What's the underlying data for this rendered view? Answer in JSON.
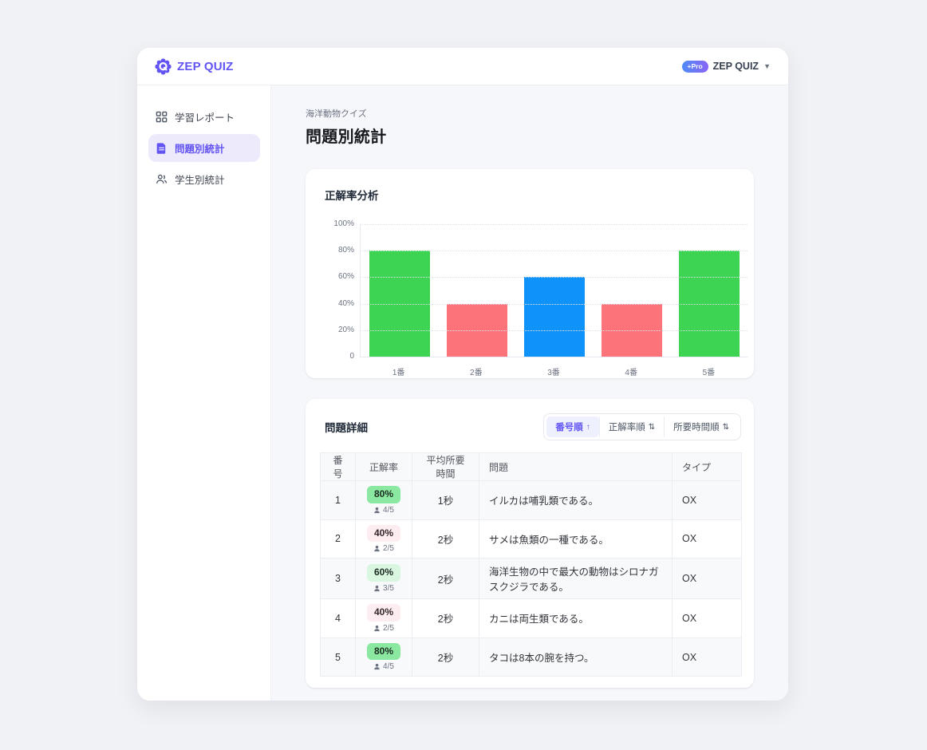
{
  "brand": {
    "logo_text": "ZEP QUIZ",
    "pro_badge": "+Pro",
    "account_name": "ZEP QUIZ"
  },
  "colors": {
    "accent_purple": "#6253f5",
    "bar_green": "#3dd353",
    "bar_red": "#fd737a",
    "bar_blue": "#0f93fb",
    "badge_green_strong": "#8ae8a0",
    "badge_green_light": "#d8f6e0",
    "badge_pink": "#fdedf0"
  },
  "sidebar": {
    "items": [
      {
        "label": "学習レポート",
        "icon": "grid-icon",
        "active": false
      },
      {
        "label": "問題別統計",
        "icon": "document-icon",
        "active": true
      },
      {
        "label": "学生別統計",
        "icon": "students-icon",
        "active": false
      }
    ]
  },
  "page": {
    "subtitle": "海洋動物クイズ",
    "title": "問題別統計"
  },
  "chart_card": {
    "title": "正解率分析"
  },
  "chart_data": {
    "type": "bar",
    "title": "正解率分析",
    "categories": [
      "1番",
      "2番",
      "3番",
      "4番",
      "5番"
    ],
    "values": [
      80,
      40,
      60,
      40,
      80
    ],
    "bar_colors": [
      "#3dd353",
      "#fd737a",
      "#0f93fb",
      "#fd737a",
      "#3dd353"
    ],
    "yticks": [
      "100%",
      "80%",
      "60%",
      "40%",
      "20%",
      "0"
    ],
    "ylim": [
      0,
      100
    ],
    "xlabel": "",
    "ylabel": "",
    "grid": "dotted horizontal",
    "legend": "none"
  },
  "details_card": {
    "title": "問題詳細",
    "sort_options": [
      {
        "label": "番号順",
        "arrow": "↑",
        "active": true
      },
      {
        "label": "正解率順",
        "arrow": "⇅",
        "active": false
      },
      {
        "label": "所要時間順",
        "arrow": "⇅",
        "active": false
      }
    ]
  },
  "table": {
    "headers": [
      "番号",
      "正解率",
      "平均所要時間",
      "問題",
      "タイプ"
    ],
    "rows": [
      {
        "number": "1",
        "rate": "80%",
        "level": "high",
        "count": "4/5",
        "time": "1秒",
        "question": "イルカは哺乳類である。",
        "type": "OX"
      },
      {
        "number": "2",
        "rate": "40%",
        "level": "low",
        "count": "2/5",
        "time": "2秒",
        "question": "サメは魚類の一種である。",
        "type": "OX"
      },
      {
        "number": "3",
        "rate": "60%",
        "level": "mid",
        "count": "3/5",
        "time": "2秒",
        "question": "海洋生物の中で最大の動物はシロナガスクジラである。",
        "type": "OX"
      },
      {
        "number": "4",
        "rate": "40%",
        "level": "low",
        "count": "2/5",
        "time": "2秒",
        "question": "カニは両生類である。",
        "type": "OX"
      },
      {
        "number": "5",
        "rate": "80%",
        "level": "high",
        "count": "4/5",
        "time": "2秒",
        "question": "タコは8本の腕を持つ。",
        "type": "OX"
      }
    ]
  }
}
